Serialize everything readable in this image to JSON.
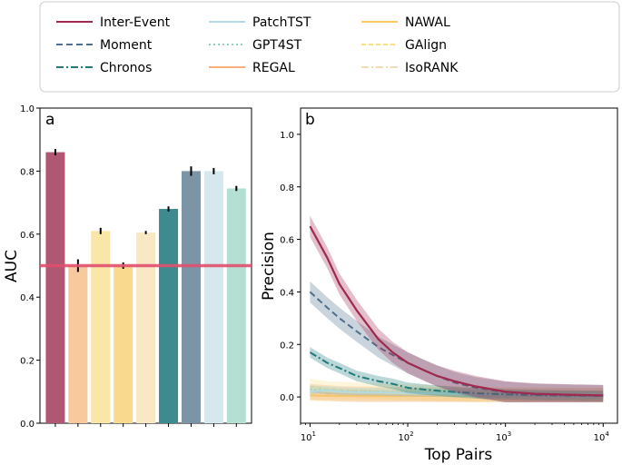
{
  "legend": [
    {
      "label": "Inter-Event",
      "color": "#9e2a4f",
      "dash": "none",
      "alpha": 1
    },
    {
      "label": "Moment",
      "color": "#4f6f8e",
      "dash": "7,4",
      "alpha": 1
    },
    {
      "label": "Chronos",
      "color": "#1f7a7a",
      "dash": "8,3,2,3",
      "alpha": 1
    },
    {
      "label": "PatchTST",
      "color": "#b4dbe4",
      "dash": "none",
      "alpha": 1
    },
    {
      "label": "GPT4ST",
      "color": "#8fd1bd",
      "dash": "2,3",
      "alpha": 1
    },
    {
      "label": "REGAL",
      "color": "#f5b07e",
      "dash": "none",
      "alpha": 1
    },
    {
      "label": "NAWAL",
      "color": "#f8cc5e",
      "dash": "none",
      "alpha": 1
    },
    {
      "label": "GAlign",
      "color": "#f8e08a",
      "dash": "5,3",
      "alpha": 1
    },
    {
      "label": "IsoRANK",
      "color": "#f2dcb6",
      "dash": "8,3,2,3",
      "alpha": 1
    }
  ],
  "chart_data": [
    {
      "panel": "a",
      "type": "bar",
      "ylabel": "AUC",
      "ylim": [
        0.0,
        1.0
      ],
      "yticks": [
        "0.0",
        "0.2",
        "0.4",
        "0.6",
        "0.8",
        "1.0"
      ],
      "reference_line": {
        "y": 0.5,
        "color": "#e0506e"
      },
      "bars": [
        {
          "method": "Inter-Event",
          "value": 0.86,
          "err": 0.01,
          "color": "#b05873"
        },
        {
          "method": "REGAL",
          "value": 0.5,
          "err": 0.02,
          "color": "#f8c99c"
        },
        {
          "method": "GAlign",
          "value": 0.61,
          "err": 0.01,
          "color": "#fae6a7"
        },
        {
          "method": "NAWAL",
          "value": 0.5,
          "err": 0.01,
          "color": "#f8d98e"
        },
        {
          "method": "IsoRANK",
          "value": 0.605,
          "err": 0.005,
          "color": "#f8e8c4"
        },
        {
          "method": "Chronos",
          "value": 0.68,
          "err": 0.008,
          "color": "#3d8b8e"
        },
        {
          "method": "Moment",
          "value": 0.8,
          "err": 0.015,
          "color": "#7b95a7"
        },
        {
          "method": "PatchTST",
          "value": 0.8,
          "err": 0.01,
          "color": "#d4e8ed"
        },
        {
          "method": "GPT4ST",
          "value": 0.745,
          "err": 0.008,
          "color": "#b4e0d3"
        }
      ]
    },
    {
      "panel": "b",
      "type": "line",
      "xlabel": "Top Pairs",
      "ylabel": "Precision",
      "xscale": "log",
      "xlim": [
        8,
        14000
      ],
      "ylim": [
        -0.1,
        1.1
      ],
      "xticks": [
        {
          "base": "10",
          "exp": "1",
          "v": 10
        },
        {
          "base": "10",
          "exp": "2",
          "v": 100
        },
        {
          "base": "10",
          "exp": "3",
          "v": 1000
        },
        {
          "base": "10",
          "exp": "4",
          "v": 10000
        }
      ],
      "yticks": [
        "0.0",
        "0.2",
        "0.4",
        "0.6",
        "0.8",
        "1.0"
      ],
      "x": [
        10,
        15,
        20,
        30,
        50,
        70,
        100,
        150,
        200,
        300,
        500,
        1000,
        2000,
        5000,
        10000
      ],
      "series": [
        {
          "name": "Inter-Event",
          "color": "#9e2a4f",
          "dash": "none",
          "width": 2.2,
          "alpha": 1,
          "values": [
            0.65,
            0.53,
            0.43,
            0.33,
            0.22,
            0.17,
            0.13,
            0.1,
            0.08,
            0.06,
            0.04,
            0.02,
            0.012,
            0.008,
            0.006
          ],
          "band": 0.04
        },
        {
          "name": "Moment",
          "color": "#4f6f8e",
          "dash": "7,4",
          "width": 2,
          "alpha": 1,
          "values": [
            0.4,
            0.34,
            0.3,
            0.25,
            0.19,
            0.16,
            0.13,
            0.1,
            0.08,
            0.055,
            0.035,
            0.018,
            0.01,
            0.007,
            0.005
          ],
          "band": 0.04
        },
        {
          "name": "Chronos",
          "color": "#1f7a7a",
          "dash": "8,3,2,3",
          "width": 2,
          "alpha": 1,
          "values": [
            0.17,
            0.13,
            0.11,
            0.08,
            0.06,
            0.05,
            0.035,
            0.028,
            0.024,
            0.019,
            0.014,
            0.01,
            0.007,
            0.005,
            0.004
          ],
          "band": 0.02
        },
        {
          "name": "PatchTST",
          "color": "#b4dbe4",
          "dash": "none",
          "width": 1.6,
          "alpha": 1,
          "values": [
            0.02,
            0.025,
            0.02,
            0.018,
            0.017,
            0.016,
            0.015,
            0.014,
            0.013,
            0.012,
            0.01,
            0.009,
            0.008,
            0.007,
            0.006
          ],
          "band": 0.01
        },
        {
          "name": "GPT4ST",
          "color": "#8fd1bd",
          "dash": "2,3",
          "width": 2,
          "alpha": 1,
          "values": [
            0.03,
            0.025,
            0.022,
            0.02,
            0.02,
            0.018,
            0.017,
            0.016,
            0.015,
            0.013,
            0.012,
            0.01,
            0.009,
            0.008,
            0.007
          ],
          "band": 0.015
        },
        {
          "name": "REGAL",
          "color": "#f5b07e",
          "dash": "none",
          "width": 1.6,
          "alpha": 1,
          "values": [
            0.02,
            0.015,
            0.012,
            0.01,
            0.009,
            0.008,
            0.007,
            0.006,
            0.006,
            0.005,
            0.005,
            0.004,
            0.004,
            0.004,
            0.004
          ],
          "band": 0.03
        },
        {
          "name": "NAWAL",
          "color": "#f8cc5e",
          "dash": "none",
          "width": 1.6,
          "alpha": 1,
          "values": [
            0.005,
            0.004,
            0.004,
            0.004,
            0.003,
            0.003,
            0.003,
            0.003,
            0.003,
            0.003,
            0.003,
            0.003,
            0.003,
            0.003,
            0.003
          ],
          "band": 0.02
        },
        {
          "name": "GAlign",
          "color": "#f8e08a",
          "dash": "5,3",
          "width": 1.6,
          "alpha": 1,
          "values": [
            0.04,
            0.03,
            0.028,
            0.025,
            0.022,
            0.02,
            0.018,
            0.016,
            0.014,
            0.012,
            0.01,
            0.008,
            0.006,
            0.005,
            0.005
          ],
          "band": 0.03
        },
        {
          "name": "IsoRANK",
          "color": "#f2dcb6",
          "dash": "8,3,2,3",
          "width": 1.6,
          "alpha": 1,
          "values": [
            0.01,
            0.01,
            0.009,
            0.008,
            0.008,
            0.007,
            0.007,
            0.006,
            0.006,
            0.005,
            0.005,
            0.004,
            0.004,
            0.004,
            0.004
          ],
          "band": 0.02
        }
      ]
    }
  ]
}
